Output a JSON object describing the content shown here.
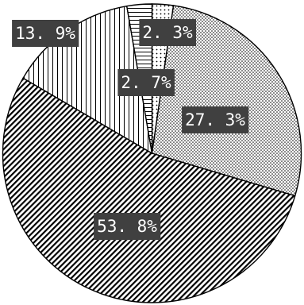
{
  "chart_data": {
    "type": "pie",
    "title": "",
    "slices": [
      {
        "value": 2.3,
        "label": "2. 3%",
        "pattern": "dots-sparse"
      },
      {
        "value": 27.3,
        "label": "27. 3%",
        "pattern": "dots-dense"
      },
      {
        "value": 53.8,
        "label": "53. 8%",
        "pattern": "diagonal-lines"
      },
      {
        "value": 13.9,
        "label": "13. 9%",
        "pattern": "vertical-lines"
      },
      {
        "value": 2.7,
        "label": "2. 7%",
        "pattern": "horizontal-lines"
      }
    ],
    "start_direction": "top",
    "order": "clockwise",
    "legend": "none",
    "colors": {
      "outline": "#000000",
      "label_background": "#404040",
      "label_text": "#ffffff"
    }
  }
}
